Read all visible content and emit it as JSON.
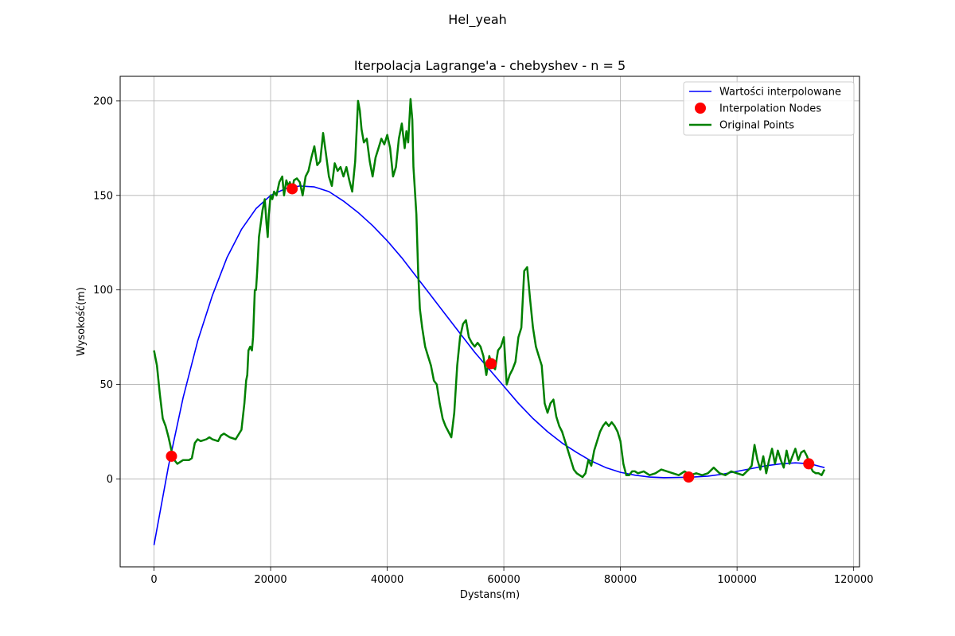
{
  "figure": {
    "suptitle": "Hel_yeah"
  },
  "chart_data": {
    "type": "line",
    "title": "Iterpolacja Lagrange'a - chebyshev - n = 5",
    "xlabel": "Dystans(m)",
    "ylabel": "Wysokość(m)",
    "xlim": [
      -5800,
      121000
    ],
    "ylim": [
      -46.5,
      213
    ],
    "xticks": [
      0,
      20000,
      40000,
      60000,
      80000,
      100000,
      120000
    ],
    "yticks": [
      0,
      50,
      100,
      150,
      200
    ],
    "xtick_labels": [
      "0",
      "20000",
      "40000",
      "60000",
      "80000",
      "100000",
      "120000"
    ],
    "ytick_labels": [
      "0",
      "50",
      "100",
      "150",
      "200"
    ],
    "grid": true,
    "legend_position": "top-right",
    "legend": [
      {
        "label": "Wartości interpolowane",
        "marker": "line",
        "color": "#0000ff"
      },
      {
        "label": "Interpolation Nodes",
        "marker": "circle",
        "color": "#ff0000"
      },
      {
        "label": "Original Points",
        "marker": "line",
        "color": "#008000"
      }
    ],
    "series": [
      {
        "name": "Wartości interpolowane",
        "color": "#0000ff",
        "x": [
          0,
          2500,
          5000,
          7500,
          10000,
          12500,
          15000,
          17500,
          20000,
          22500,
          25000,
          27500,
          30000,
          32500,
          35000,
          37500,
          40000,
          42500,
          45000,
          47500,
          50000,
          52500,
          55000,
          57500,
          60000,
          62500,
          65000,
          67500,
          70000,
          72500,
          75000,
          77500,
          80000,
          82500,
          85000,
          87500,
          90000,
          92500,
          95000,
          97500,
          100000,
          102500,
          105000,
          107500,
          110000,
          112500,
          115000
        ],
        "y": [
          -35,
          7,
          43,
          73,
          97,
          117,
          132,
          143,
          150,
          153.5,
          155,
          154.5,
          152,
          147,
          141,
          134,
          126,
          117,
          107,
          97,
          87,
          77,
          67,
          58,
          49,
          40,
          32,
          25,
          19,
          14,
          9.5,
          6,
          3.5,
          2,
          1,
          0.7,
          0.8,
          1,
          1.5,
          2.5,
          4,
          5.5,
          7,
          8,
          8.5,
          8,
          6
        ]
      },
      {
        "name": "Interpolation Nodes",
        "color": "#ff0000",
        "x": [
          3000,
          23700,
          57800,
          91700,
          112300
        ],
        "y": [
          12,
          153.5,
          61,
          1,
          8
        ]
      },
      {
        "name": "Original Points",
        "color": "#008000",
        "x": [
          0,
          500,
          1000,
          1500,
          2000,
          2500,
          3000,
          3500,
          4000,
          5000,
          6000,
          6500,
          7000,
          7500,
          8000,
          9000,
          9500,
          10000,
          11000,
          11500,
          12000,
          13000,
          14000,
          15000,
          15500,
          15800,
          16000,
          16200,
          16500,
          16800,
          17000,
          17300,
          17500,
          17700,
          18000,
          18300,
          18600,
          19000,
          19300,
          19500,
          19700,
          20000,
          20300,
          20600,
          21000,
          21500,
          22000,
          22300,
          22700,
          23000,
          23300,
          23700,
          24000,
          24500,
          25000,
          25500,
          26000,
          26500,
          27000,
          27500,
          28000,
          28500,
          29000,
          29500,
          30000,
          30500,
          31000,
          31500,
          32000,
          32500,
          33000,
          33500,
          34000,
          34500,
          35000,
          35300,
          35600,
          36000,
          36500,
          37000,
          37500,
          38000,
          38500,
          39000,
          39500,
          40000,
          40500,
          41000,
          41500,
          42000,
          42500,
          43000,
          43300,
          43600,
          44000,
          44300,
          44500,
          44700,
          45000,
          45300,
          45600,
          46000,
          46500,
          47000,
          47500,
          48000,
          48500,
          49000,
          49500,
          50000,
          50500,
          51000,
          51500,
          52000,
          52500,
          53000,
          53500,
          54000,
          54500,
          55000,
          55500,
          56000,
          56500,
          57000,
          57500,
          58000,
          58500,
          59000,
          59500,
          60000,
          60500,
          61000,
          61500,
          62000,
          62500,
          63000,
          63500,
          64000,
          64500,
          65000,
          65500,
          66000,
          66500,
          67000,
          67500,
          68000,
          68500,
          69000,
          69500,
          70000,
          70500,
          71000,
          71500,
          72000,
          72500,
          73000,
          73500,
          74000,
          74500,
          75000,
          75500,
          76000,
          76500,
          77000,
          77500,
          78000,
          78500,
          79000,
          79500,
          80000,
          80500,
          81000,
          81500,
          82000,
          82500,
          83000,
          84000,
          85000,
          86000,
          87000,
          88000,
          89000,
          90000,
          91000,
          92000,
          93000,
          94000,
          95000,
          96000,
          97000,
          98000,
          99000,
          100000,
          101000,
          102000,
          102500,
          103000,
          103500,
          104000,
          104500,
          105000,
          105500,
          106000,
          106500,
          107000,
          107500,
          108000,
          108500,
          109000,
          109500,
          110000,
          110500,
          111000,
          111500,
          112000,
          112500,
          113000,
          113500,
          114000,
          114500,
          115000
        ],
        "y": [
          68,
          60,
          45,
          32,
          28,
          22,
          15,
          10,
          8,
          10,
          10,
          11,
          19,
          21,
          20,
          21,
          22,
          21,
          20,
          23,
          24,
          22,
          21,
          26,
          40,
          52,
          55,
          68,
          70,
          68,
          75,
          100,
          100,
          110,
          128,
          135,
          142,
          148,
          135,
          128,
          140,
          150,
          148,
          152,
          150,
          157,
          160,
          150,
          158,
          155,
          157,
          152,
          158,
          159,
          157,
          150,
          160,
          163,
          170,
          176,
          166,
          168,
          183,
          172,
          160,
          155,
          167,
          163,
          165,
          160,
          165,
          158,
          152,
          168,
          200,
          195,
          185,
          178,
          180,
          168,
          160,
          170,
          175,
          180,
          177,
          182,
          175,
          160,
          165,
          180,
          188,
          175,
          184,
          178,
          201,
          190,
          165,
          155,
          140,
          110,
          90,
          80,
          70,
          65,
          60,
          52,
          50,
          40,
          32,
          28,
          25,
          22,
          35,
          60,
          75,
          82,
          84,
          75,
          72,
          70,
          72,
          70,
          65,
          55,
          65,
          60,
          58,
          68,
          70,
          75,
          50,
          55,
          58,
          62,
          75,
          80,
          110,
          112,
          95,
          80,
          70,
          65,
          60,
          40,
          35,
          40,
          42,
          33,
          28,
          25,
          20,
          15,
          10,
          5,
          3,
          2,
          1,
          3,
          10,
          7,
          15,
          20,
          25,
          28,
          30,
          28,
          30,
          28,
          25,
          20,
          8,
          2,
          2,
          4,
          4,
          3,
          4,
          2,
          3,
          5,
          4,
          3,
          2,
          4,
          2,
          3,
          2,
          3,
          6,
          3,
          2,
          4,
          3,
          2,
          5,
          7,
          18,
          10,
          5,
          12,
          3,
          10,
          16,
          8,
          15,
          10,
          6,
          15,
          8,
          12,
          16,
          10,
          14,
          15,
          12,
          7,
          4,
          3,
          3,
          2,
          5
        ]
      }
    ]
  }
}
